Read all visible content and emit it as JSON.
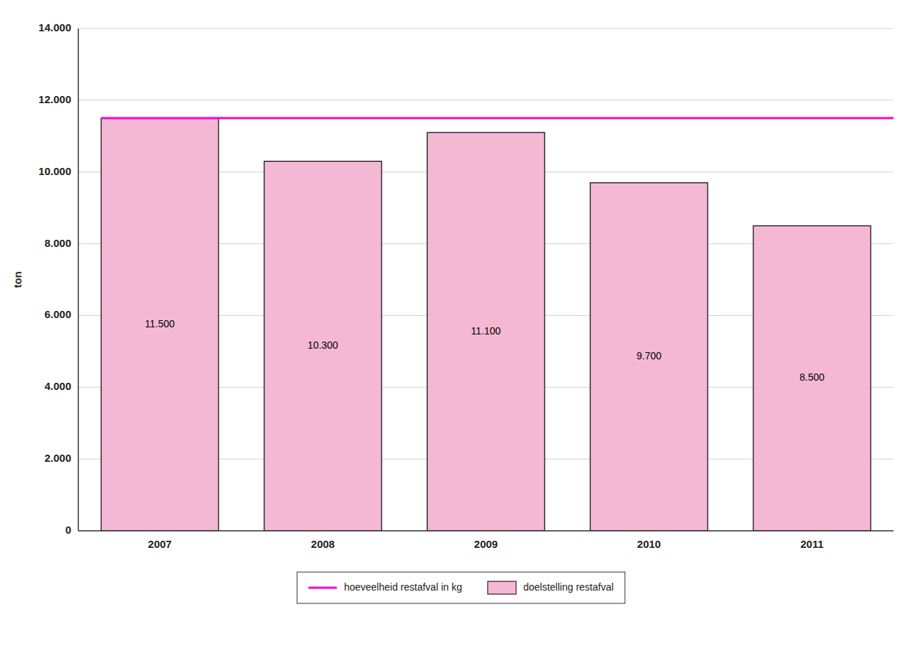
{
  "chart_data": {
    "type": "bar",
    "categories": [
      "2007",
      "2008",
      "2009",
      "2010",
      "2011"
    ],
    "series": [
      {
        "name": "hoeveelheid restafval in kg",
        "type": "line",
        "color": "#ff00cc",
        "value": 11500
      },
      {
        "name": "doelstelling restafval",
        "type": "bar",
        "color": "#f4b8d4",
        "values": [
          11500,
          10300,
          11100,
          9700,
          8500
        ],
        "value_labels": [
          "11.500",
          "10.300",
          "11.100",
          "9.700",
          "8.500"
        ]
      }
    ],
    "y_label": "ton",
    "ylim": [
      0,
      14000
    ],
    "yticks": [
      0,
      {
        "value": 2000,
        "label": "2.000"
      },
      {
        "value": 4000,
        "label": "4.000"
      },
      {
        "value": 6000,
        "label": "6.000"
      },
      {
        "value": 8000,
        "label": "8.000"
      },
      {
        "value": 10000,
        "label": "10.000"
      },
      {
        "value": 12000,
        "label": "12.000"
      },
      {
        "value": 14000,
        "label": "14.000"
      }
    ],
    "grid": true,
    "legend": "bottom",
    "data_labels": true
  }
}
